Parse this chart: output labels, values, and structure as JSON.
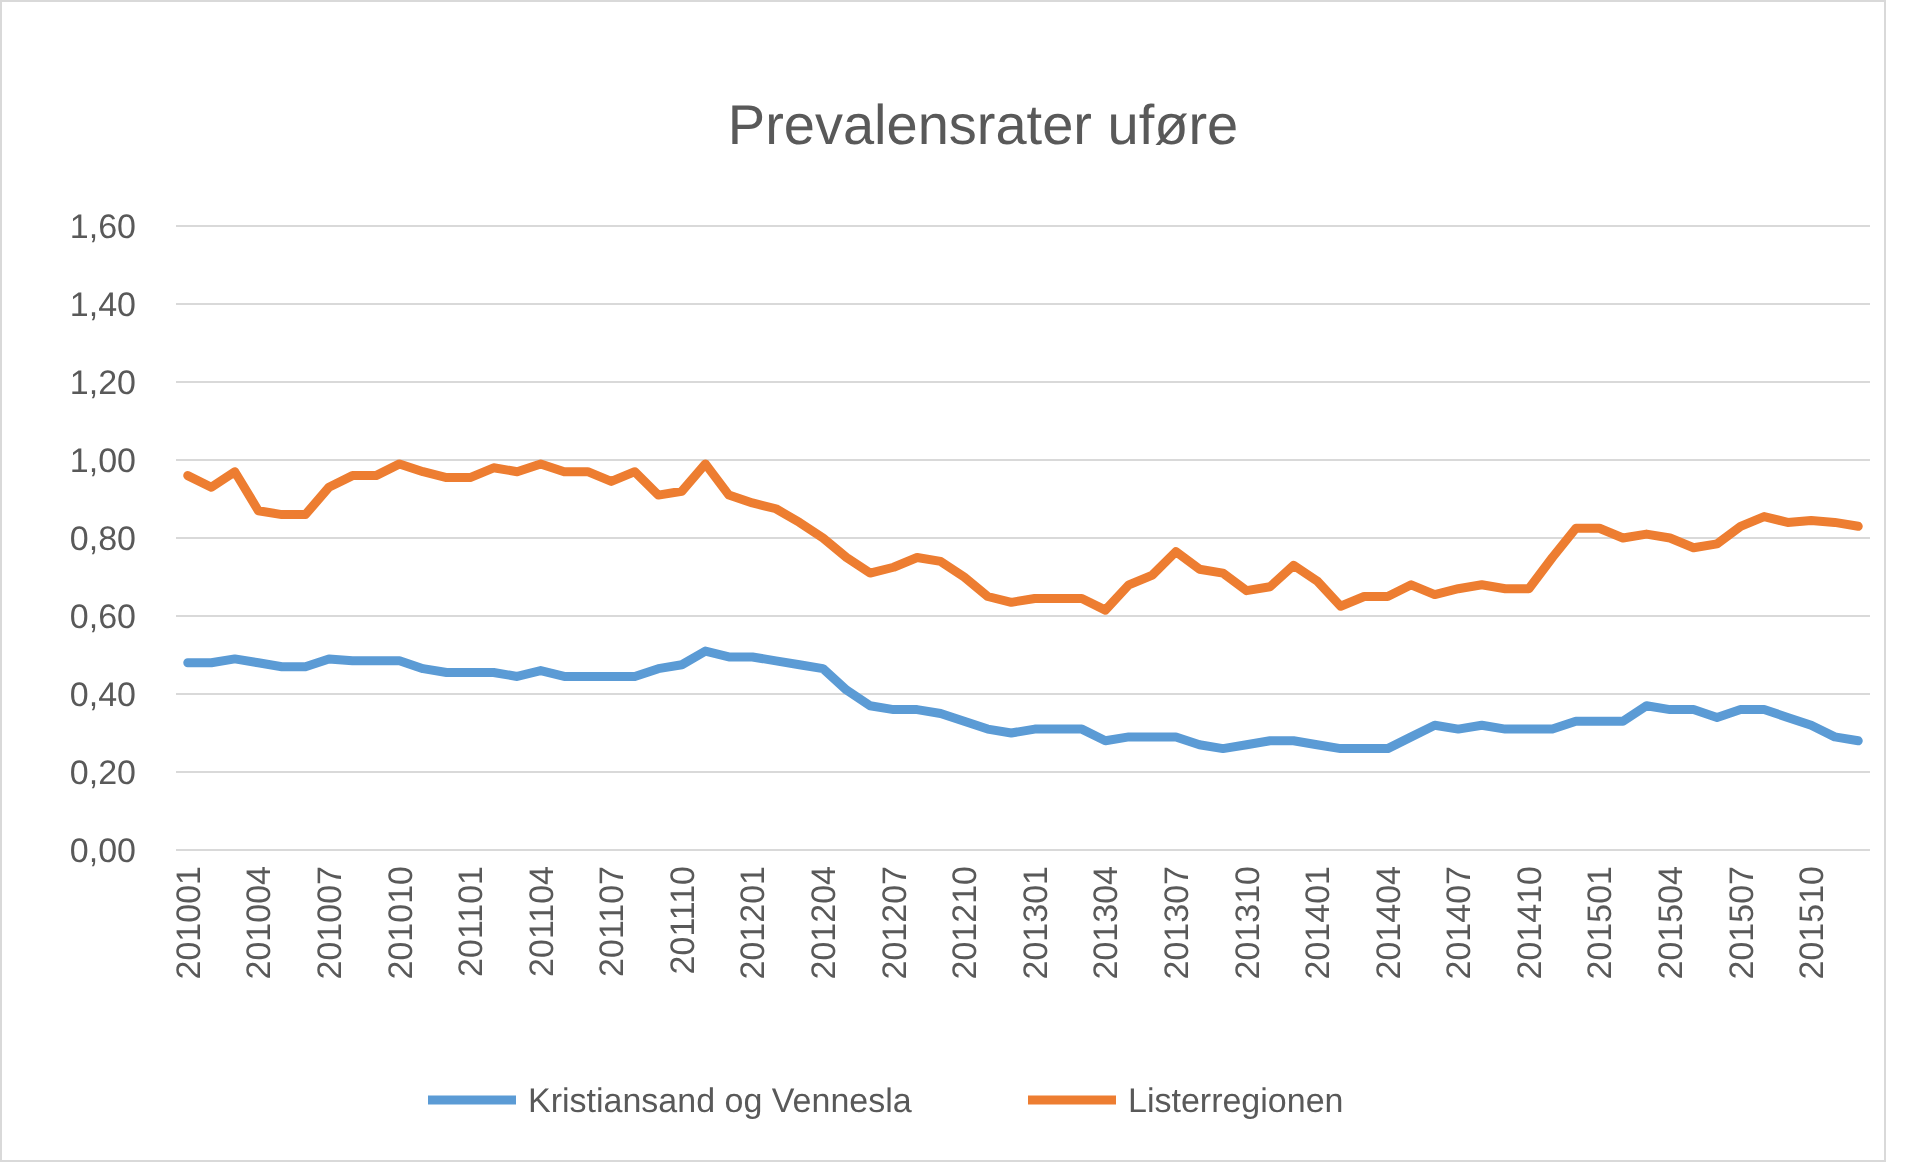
{
  "chart_data": {
    "type": "line",
    "title": "Prevalensrater uføre",
    "categories": [
      "201001",
      null,
      null,
      "201004",
      null,
      null,
      "201007",
      null,
      null,
      "201010",
      null,
      null,
      "201101",
      null,
      null,
      "201104",
      null,
      null,
      "201107",
      null,
      null,
      "201110",
      null,
      null,
      "201201",
      null,
      null,
      "201204",
      null,
      null,
      "201207",
      null,
      null,
      "201210",
      null,
      null,
      "201301",
      null,
      null,
      "201304",
      null,
      null,
      "201307",
      null,
      null,
      "201310",
      null,
      null,
      "201401",
      null,
      null,
      "201404",
      null,
      null,
      "201407",
      null,
      null,
      "201410",
      null,
      null,
      "201501",
      null,
      null,
      "201504",
      null,
      null,
      "201507",
      null,
      null,
      "201510",
      null,
      null
    ],
    "series": [
      {
        "name": "Kristiansand og Vennesla",
        "color": "#5b9bd5",
        "values": [
          0.48,
          0.48,
          0.49,
          0.48,
          0.47,
          0.47,
          0.49,
          0.485,
          0.485,
          0.485,
          0.465,
          0.455,
          0.455,
          0.455,
          0.445,
          0.46,
          0.445,
          0.445,
          0.445,
          0.445,
          0.465,
          0.475,
          0.51,
          0.495,
          0.495,
          0.485,
          0.475,
          0.465,
          0.41,
          0.37,
          0.36,
          0.36,
          0.35,
          0.33,
          0.31,
          0.3,
          0.31,
          0.31,
          0.31,
          0.28,
          0.29,
          0.29,
          0.29,
          0.27,
          0.26,
          0.27,
          0.28,
          0.28,
          0.27,
          0.26,
          0.26,
          0.26,
          0.29,
          0.32,
          0.31,
          0.32,
          0.31,
          0.31,
          0.31,
          0.33,
          0.33,
          0.33,
          0.37,
          0.36,
          0.36,
          0.34,
          0.36,
          0.36,
          0.34,
          0.32,
          0.29,
          0.28
        ]
      },
      {
        "name": "Listerregionen",
        "color": "#ed7d31",
        "values": [
          0.96,
          0.93,
          0.97,
          0.87,
          0.86,
          0.86,
          0.93,
          0.96,
          0.96,
          0.99,
          0.97,
          0.955,
          0.955,
          0.98,
          0.97,
          0.99,
          0.97,
          0.97,
          0.945,
          0.97,
          0.91,
          0.92,
          0.99,
          0.91,
          0.89,
          0.875,
          0.84,
          0.8,
          0.75,
          0.71,
          0.725,
          0.75,
          0.74,
          0.7,
          0.65,
          0.635,
          0.645,
          0.645,
          0.645,
          0.615,
          0.68,
          0.705,
          0.765,
          0.72,
          0.71,
          0.665,
          0.675,
          0.73,
          0.69,
          0.625,
          0.65,
          0.65,
          0.68,
          0.655,
          0.67,
          0.68,
          0.67,
          0.67,
          0.75,
          0.825,
          0.825,
          0.8,
          0.81,
          0.8,
          0.775,
          0.785,
          0.83,
          0.855,
          0.84,
          0.845,
          0.84,
          0.83
        ]
      }
    ],
    "ylim": [
      0,
      1.6
    ],
    "yticks": [
      {
        "value": 0,
        "label": "0,00"
      },
      {
        "value": 0.2,
        "label": "0,20"
      },
      {
        "value": 0.4,
        "label": "0,40"
      },
      {
        "value": 0.6,
        "label": "0,60"
      },
      {
        "value": 0.8,
        "label": "0,80"
      },
      {
        "value": 1,
        "label": "1,00"
      },
      {
        "value": 1.2,
        "label": "1,20"
      },
      {
        "value": 1.4,
        "label": "1,40"
      },
      {
        "value": 1.6,
        "label": "1,60"
      }
    ],
    "grid": "y",
    "legend": "bottom",
    "marker": "none",
    "line_style": "solid"
  }
}
